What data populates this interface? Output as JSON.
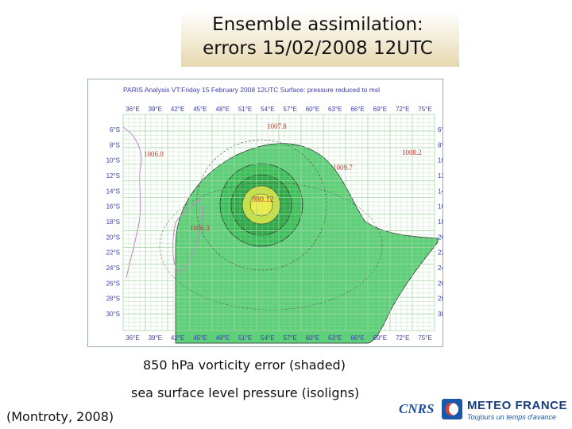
{
  "slide": {
    "title_line1": "Ensemble assimilation:",
    "title_line2": "errors 15/02/2008 12UTC",
    "caption_line1": "850 hPa vorticity error (shaded)",
    "caption_line2": "sea surface level pressure (isoligns)",
    "citation": "(Montroty, 2008)"
  },
  "map": {
    "header": "PARIS  Analysis VT:Friday 15 February 2008 12UTC Surface: pressure reduced to msl",
    "lon_labels": [
      "36°E",
      "39°E",
      "42°E",
      "45°E",
      "48°E",
      "51°E",
      "54°E",
      "57°E",
      "60°E",
      "63°E",
      "66°E",
      "69°E",
      "72°E",
      "75°E"
    ],
    "lat_labels": [
      "6°S",
      "8°S",
      "10°S",
      "12°S",
      "14°S",
      "16°S",
      "18°S",
      "20°S",
      "22°S",
      "24°S",
      "26°S",
      "28°S",
      "30°S"
    ],
    "pressure_labels": {
      "p1": "1007.8",
      "p2": "1008.2",
      "p3": "1006.0",
      "p4": "1009.7",
      "p5": "980.12",
      "p6": "1006.3"
    },
    "colors": {
      "grid": "#a8d5a8",
      "shade_light": "#5fd07a",
      "shade_mid": "#34b84e",
      "center_yellow": "#e8e84a",
      "header_text": "#3b3bb0"
    }
  },
  "logos": {
    "cnrs": "CNRS",
    "meteo_france": "METEO FRANCE",
    "meteo_france_tagline": "Toujours un temps d'avance"
  }
}
